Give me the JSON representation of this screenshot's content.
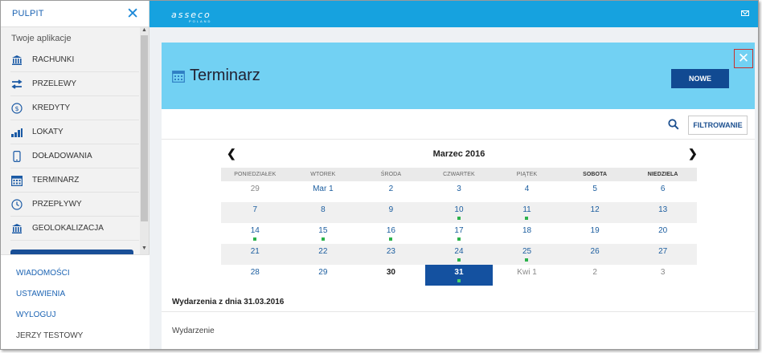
{
  "sidebar": {
    "title": "PULPIT",
    "section_label": "Twoje aplikacje",
    "items": [
      {
        "label": "RACHUNKI",
        "icon": "bank-icon"
      },
      {
        "label": "PRZELEWY",
        "icon": "transfer-arrows-icon"
      },
      {
        "label": "KREDYTY",
        "icon": "dollar-circle-icon"
      },
      {
        "label": "LOKATY",
        "icon": "bar-chart-icon"
      },
      {
        "label": "DOŁADOWANIA",
        "icon": "mobile-phone-icon"
      },
      {
        "label": "TERMINARZ",
        "icon": "calendar-icon"
      },
      {
        "label": "PRZEPŁYWY",
        "icon": "clock-icon"
      },
      {
        "label": "GEOLOKALIZACJA",
        "icon": "bank-icon"
      }
    ],
    "bottom_links": [
      "WIADOMOŚCI",
      "USTAWIENIA",
      "WYLOGUJ"
    ],
    "user_name": "JERZY TESTOWY"
  },
  "topbar": {
    "logo_text": "asseco",
    "logo_sub": "POLAND",
    "brand_color": "#16a2df"
  },
  "panel": {
    "title": "Terminarz",
    "new_button": "NOWE",
    "filter_button": "FILTROWANIE",
    "accent_color": "#72d1f3"
  },
  "calendar": {
    "month_label": "Marzec 2016",
    "weekdays": [
      "PONIEDZIAŁEK",
      "WTOREK",
      "ŚRODA",
      "CZWARTEK",
      "PIĄTEK",
      "SOBOTA",
      "NIEDZIELA"
    ],
    "weeks": [
      [
        "29",
        "Mar 1",
        "2",
        "3",
        "4",
        "5",
        "6"
      ],
      [
        "7",
        "8",
        "9",
        "10",
        "11",
        "12",
        "13"
      ],
      [
        "14",
        "15",
        "16",
        "17",
        "18",
        "19",
        "20"
      ],
      [
        "21",
        "22",
        "23",
        "24",
        "25",
        "26",
        "27"
      ],
      [
        "28",
        "29",
        "30",
        "31",
        "Kwi 1",
        "2",
        "3"
      ]
    ],
    "selected_day": "31",
    "event_days": [
      "10",
      "11",
      "14",
      "15",
      "16",
      "17",
      "24",
      "25",
      "31"
    ]
  },
  "events": {
    "heading": "Wydarzenia z dnia 31.03.2016",
    "column_label": "Wydarzenie"
  }
}
